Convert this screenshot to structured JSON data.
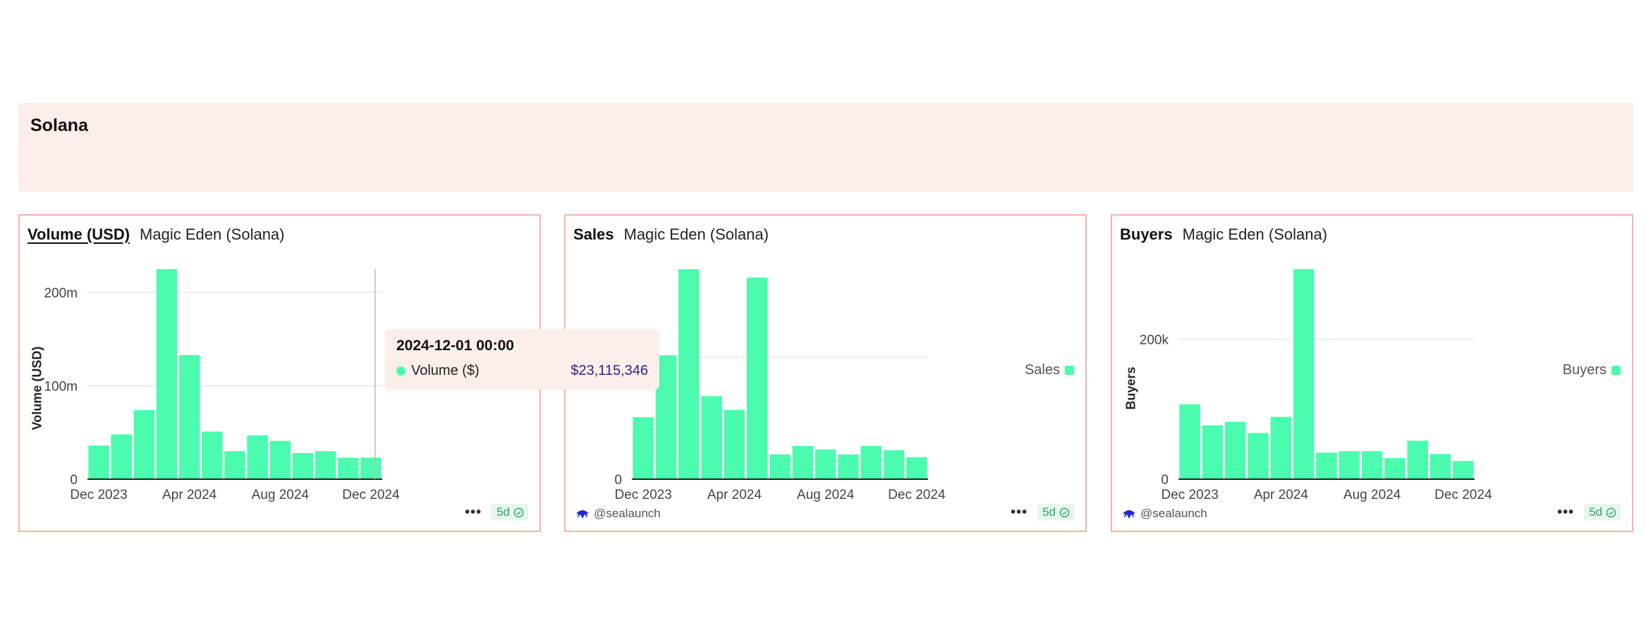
{
  "section": {
    "title": "Solana"
  },
  "colors": {
    "bar": "#4bfcae",
    "border": "#f3b4a3",
    "header_bg": "#fcefeb",
    "tooltip_value": "#2d2580",
    "badge_text": "#2fa36a"
  },
  "icons": {
    "menu": "more-dots-icon",
    "fresh": "check-circle-icon",
    "creator": "sea-creature-icon"
  },
  "cards": [
    {
      "metric": "Volume (USD)",
      "source": "Magic Eden (Solana)",
      "creator": "",
      "freshness": "5d",
      "legend": "",
      "tooltip": {
        "date": "2024-12-01 00:00",
        "series": "Volume ($)",
        "value": "$23,115,346"
      }
    },
    {
      "metric": "Sales",
      "source": "Magic Eden (Solana)",
      "creator": "@sealaunch",
      "freshness": "5d",
      "legend": "Sales"
    },
    {
      "metric": "Buyers",
      "source": "Magic Eden (Solana)",
      "creator": "@sealaunch",
      "freshness": "5d",
      "legend": "Buyers"
    }
  ],
  "chart_data": [
    {
      "type": "bar",
      "categories": [
        "Dec 2023",
        "Jan 2024",
        "Feb 2024",
        "Mar 2024",
        "Apr 2024",
        "May 2024",
        "Jun 2024",
        "Jul 2024",
        "Aug 2024",
        "Sep 2024",
        "Oct 2024",
        "Nov 2024",
        "Dec 2024"
      ],
      "x_tick_labels": [
        "Dec 2023",
        "Apr 2024",
        "Aug 2024",
        "Dec 2024"
      ],
      "x_tick_indices": [
        0,
        4,
        8,
        12
      ],
      "values": [
        36000000,
        48000000,
        74000000,
        225000000,
        133000000,
        51000000,
        30000000,
        47000000,
        41000000,
        28000000,
        30000000,
        23000000,
        23115346
      ],
      "y_ticks": [
        0,
        100000000,
        200000000
      ],
      "y_tick_labels": [
        "0",
        "100m",
        "200m"
      ],
      "ylim": [
        0,
        225000000
      ],
      "ylabel": "Volume (USD)",
      "xlabel": "",
      "grid": true
    },
    {
      "type": "bar",
      "categories": [
        "Dec 2023",
        "Jan 2024",
        "Feb 2024",
        "Mar 2024",
        "Apr 2024",
        "May 2024",
        "Jun 2024",
        "Jul 2024",
        "Aug 2024",
        "Sep 2024",
        "Oct 2024",
        "Nov 2024",
        "Dec 2024"
      ],
      "x_tick_labels": [
        "Dec 2023",
        "Apr 2024",
        "Aug 2024",
        "Dec 2024"
      ],
      "x_tick_indices": [
        0,
        4,
        8,
        12
      ],
      "values": [
        29500,
        59000,
        100000,
        39500,
        33000,
        96000,
        11800,
        15800,
        14200,
        11800,
        15800,
        13800,
        10500
      ],
      "y_ticks": [
        0,
        58000
      ],
      "y_tick_labels": [
        "0",
        ""
      ],
      "ylim": [
        0,
        100000
      ],
      "ylabel": "",
      "xlabel": "",
      "legend": "Sales",
      "grid": true
    },
    {
      "type": "bar",
      "categories": [
        "Dec 2023",
        "Jan 2024",
        "Feb 2024",
        "Mar 2024",
        "Apr 2024",
        "May 2024",
        "Jun 2024",
        "Jul 2024",
        "Aug 2024",
        "Sep 2024",
        "Oct 2024",
        "Nov 2024",
        "Dec 2024"
      ],
      "x_tick_labels": [
        "Dec 2023",
        "Apr 2024",
        "Aug 2024",
        "Dec 2024"
      ],
      "x_tick_indices": [
        0,
        4,
        8,
        12
      ],
      "values": [
        107000,
        77000,
        82000,
        66000,
        89000,
        300000,
        38000,
        40000,
        40000,
        30000,
        55000,
        36000,
        26000
      ],
      "y_ticks": [
        0,
        200000
      ],
      "y_tick_labels": [
        "0",
        "200k"
      ],
      "ylim": [
        0,
        300000
      ],
      "ylabel": "Buyers",
      "xlabel": "",
      "legend": "Buyers",
      "grid": true
    }
  ]
}
